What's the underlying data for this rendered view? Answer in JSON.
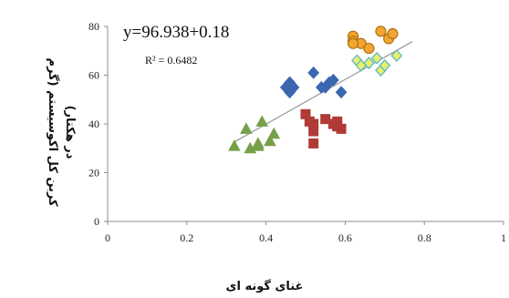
{
  "chart_data": {
    "type": "scatter",
    "xlabel": "غنای گونه ای",
    "ylabel_lines": [
      "کربن کل اکوسیستم (گرم",
      "در هکتار)"
    ],
    "xlim": [
      0,
      1
    ],
    "ylim": [
      0,
      80
    ],
    "xticks": [
      "0",
      "0.2",
      "0.4",
      "0.6",
      "0.8",
      "1"
    ],
    "yticks": [
      "0",
      "20",
      "40",
      "60",
      "80"
    ],
    "xtick_values": [
      0,
      0.2,
      0.4,
      0.6,
      0.8,
      1
    ],
    "ytick_values": [
      0,
      20,
      40,
      60,
      80
    ],
    "grid": false,
    "equation": "y=96.938+0.18",
    "r_squared": "R² = 0.6482",
    "trendline": {
      "x": [
        0.32,
        0.77
      ],
      "y": [
        32.6,
        73.8
      ],
      "color": "#999999"
    },
    "series": [
      {
        "marker": "triangle",
        "color": "#77a04a",
        "edge": "#77a04a",
        "points": [
          [
            0.32,
            31
          ],
          [
            0.35,
            38
          ],
          [
            0.36,
            30
          ],
          [
            0.38,
            32
          ],
          [
            0.39,
            41
          ],
          [
            0.41,
            33
          ],
          [
            0.42,
            36
          ],
          [
            0.38,
            31
          ]
        ]
      },
      {
        "marker": "diamond",
        "color": "#3a67b0",
        "edge": "#3a67b0",
        "points": [
          [
            0.45,
            55
          ],
          [
            0.46,
            53
          ],
          [
            0.46,
            57
          ],
          [
            0.47,
            55
          ],
          [
            0.52,
            61
          ],
          [
            0.54,
            55
          ],
          [
            0.55,
            55
          ],
          [
            0.56,
            57
          ],
          [
            0.57,
            58
          ],
          [
            0.59,
            53
          ]
        ]
      },
      {
        "marker": "square",
        "color": "#b03a36",
        "edge": "#b03a36",
        "points": [
          [
            0.5,
            44
          ],
          [
            0.51,
            41
          ],
          [
            0.52,
            40
          ],
          [
            0.52,
            37
          ],
          [
            0.52,
            32
          ],
          [
            0.55,
            42
          ],
          [
            0.57,
            40
          ],
          [
            0.58,
            41
          ],
          [
            0.58,
            39
          ],
          [
            0.59,
            38
          ]
        ]
      },
      {
        "marker": "circle",
        "color": "#f2a530",
        "edge": "#b07010",
        "points": [
          [
            0.62,
            76
          ],
          [
            0.62,
            74
          ],
          [
            0.64,
            73
          ],
          [
            0.66,
            71
          ],
          [
            0.69,
            78
          ],
          [
            0.71,
            75
          ],
          [
            0.72,
            77
          ],
          [
            0.62,
            73
          ]
        ]
      },
      {
        "marker": "diamond",
        "color": "#e6f06a",
        "edge": "#62b8c8",
        "points": [
          [
            0.63,
            66
          ],
          [
            0.64,
            64
          ],
          [
            0.66,
            65
          ],
          [
            0.68,
            67
          ],
          [
            0.69,
            62
          ],
          [
            0.7,
            64
          ],
          [
            0.73,
            68
          ]
        ]
      }
    ]
  }
}
